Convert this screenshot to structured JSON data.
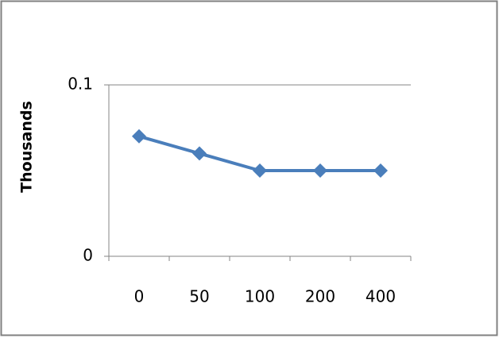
{
  "chart_data": {
    "type": "line",
    "y_label": "Thousands",
    "categories": [
      "0",
      "50",
      "100",
      "200",
      "400"
    ],
    "series": [
      {
        "color": "#4a7ebb",
        "values": [
          0.07,
          0.06,
          0.05,
          0.05,
          0.05
        ]
      }
    ],
    "ylim": [
      0,
      0.1
    ],
    "yticks": [
      0,
      0.1
    ],
    "grid": true
  }
}
